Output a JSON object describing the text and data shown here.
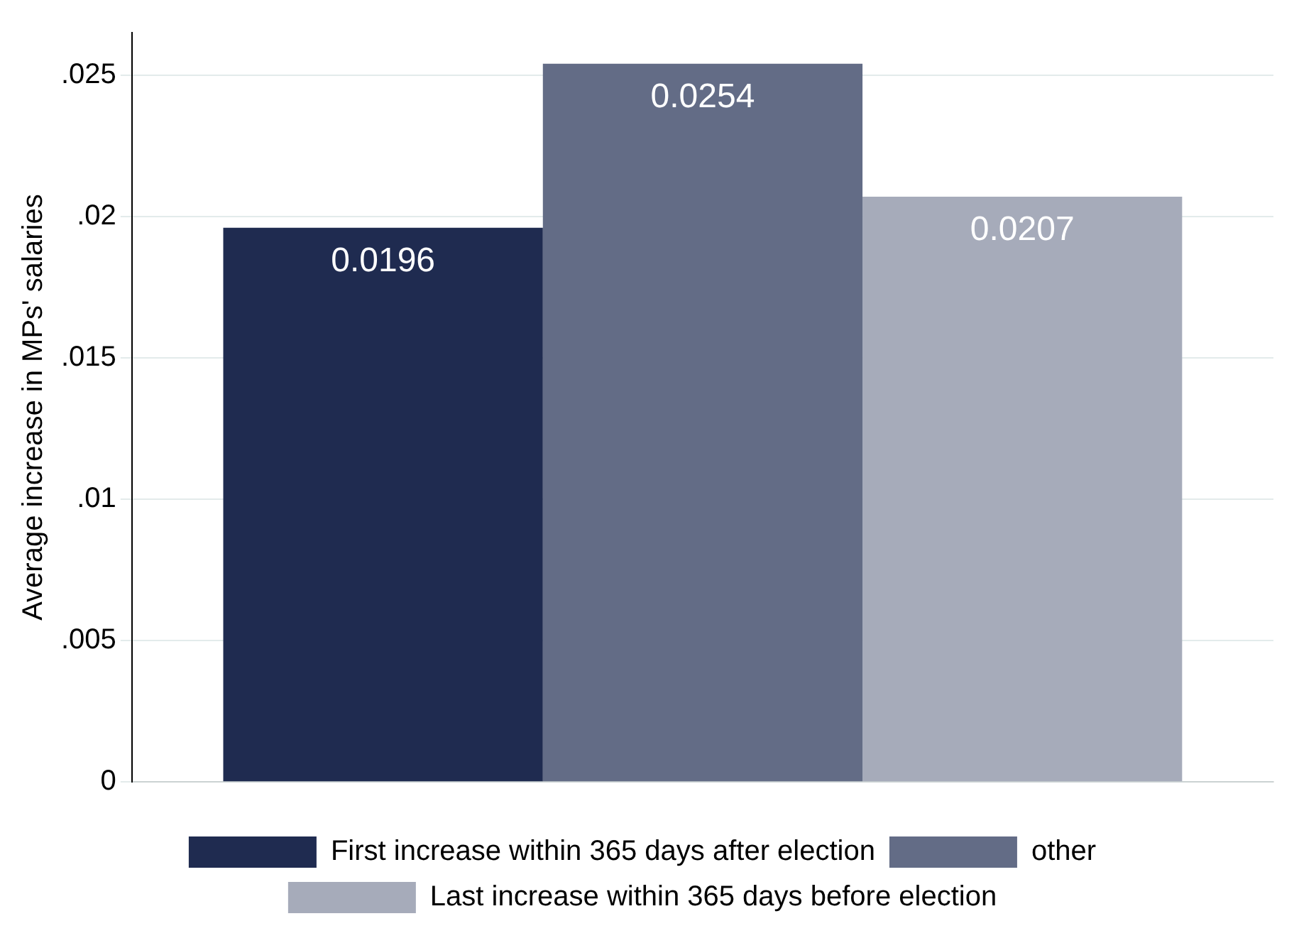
{
  "chart_data": {
    "type": "bar",
    "ylabel": "Average increase in MPs' salaries",
    "categories": [
      null
    ],
    "series": [
      {
        "name": "First increase within 365 days after election",
        "color": "#1f2b50",
        "values": [
          0.0196
        ]
      },
      {
        "name": "other",
        "color": "#636c86",
        "values": [
          0.0254
        ]
      },
      {
        "name": "Last increase within 365 days before election",
        "color": "#a6abba",
        "values": [
          0.0207
        ]
      }
    ],
    "ylim": [
      0,
      0.0265
    ],
    "yticks": [
      0,
      {
        "value": 0.005,
        "label": ".005"
      },
      {
        "value": 0.01,
        "label": ".01"
      },
      {
        "value": 0.015,
        "label": ".015"
      },
      {
        "value": 0.02,
        "label": ".02"
      },
      {
        "value": 0.025,
        "label": ".025"
      }
    ],
    "grid": "y",
    "legend": "bottom",
    "data_labels": true
  }
}
